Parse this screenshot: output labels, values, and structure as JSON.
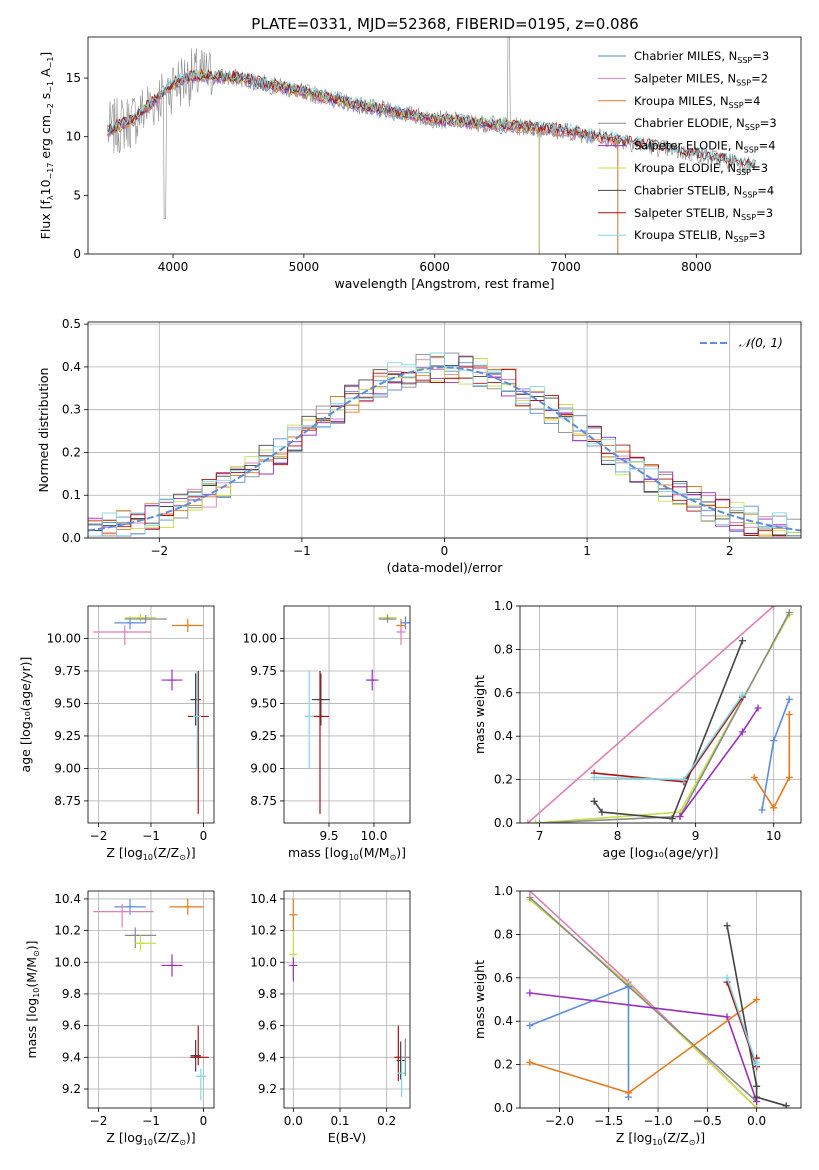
{
  "title": "PLATE=0331, MJD=52368, FIBERID=0195, z=0.086",
  "colors": {
    "Chabrier MILES": "#5b8de0",
    "Salpeter MILES": "#e07fb8",
    "Kroupa MILES": "#e87a1c",
    "Chabrier ELODIE": "#8b8b8b",
    "Salpeter ELODIE": "#9a2fbf",
    "Kroupa ELODIE": "#c8df46",
    "Chabrier STELIB": "#444444",
    "Salpeter STELIB": "#b01010",
    "Kroupa STELIB": "#80d8e6",
    "normal": "#5b8de0"
  },
  "chart_data": [
    {
      "id": "spectrum",
      "type": "line",
      "xlabel": "wavelength [Angstrom, rest frame]",
      "ylabel_parts": [
        "Flux [f",
        "λ",
        "10",
        "−17",
        " erg cm",
        "−2",
        " s",
        "−1",
        " A",
        "−1",
        "]"
      ],
      "xlim": [
        3350,
        8800
      ],
      "ylim": [
        0,
        18.5
      ],
      "xticks": [
        4000,
        5000,
        6000,
        7000,
        8000
      ],
      "yticks": [
        0,
        5,
        10,
        15
      ],
      "grid": false,
      "legend_position": "top-right",
      "legend": [
        {
          "name": "Chabrier MILES",
          "nssp": "3"
        },
        {
          "name": "Salpeter MILES",
          "nssp": "2"
        },
        {
          "name": "Kroupa MILES",
          "nssp": "4"
        },
        {
          "name": "Chabrier ELODIE",
          "nssp": "3"
        },
        {
          "name": "Salpeter ELODIE",
          "nssp": "4"
        },
        {
          "name": "Kroupa ELODIE",
          "nssp": "3"
        },
        {
          "name": "Chabrier STELIB",
          "nssp": "4"
        },
        {
          "name": "Salpeter STELIB",
          "nssp": "3"
        },
        {
          "name": "Kroupa STELIB",
          "nssp": "3"
        }
      ],
      "continuum": [
        [
          3500,
          10.5
        ],
        [
          3600,
          11.0
        ],
        [
          3700,
          11.5
        ],
        [
          3800,
          12.5
        ],
        [
          3900,
          13.5
        ],
        [
          4000,
          14.5
        ],
        [
          4100,
          15.0
        ],
        [
          4200,
          15.2
        ],
        [
          4500,
          15.0
        ],
        [
          5000,
          13.8
        ],
        [
          5500,
          12.5
        ],
        [
          6000,
          11.5
        ],
        [
          6500,
          11.0
        ],
        [
          7000,
          10.5
        ],
        [
          7500,
          9.5
        ],
        [
          8000,
          8.5
        ],
        [
          8450,
          7.5
        ]
      ]
    },
    {
      "id": "residuals",
      "type": "line",
      "xlabel": "(data-model)/error",
      "ylabel": "Normed distribution",
      "xlim": [
        -2.5,
        2.5
      ],
      "ylim": [
        0,
        0.505
      ],
      "xticks": [
        -2,
        -1,
        0,
        1,
        2
      ],
      "yticks": [
        0.0,
        0.1,
        0.2,
        0.3,
        0.4,
        0.5
      ],
      "grid": true,
      "legend_position": "top-right",
      "legend": [
        {
          "name": "𝒩(0, 1)"
        }
      ],
      "bin_width": 0.1,
      "x_start": -2.5
    },
    {
      "id": "age-vs-Z",
      "type": "scatter",
      "xlabel_parts": [
        "Z [log",
        "10",
        "(Z/Z",
        "⊙",
        ")]"
      ],
      "ylabel": "age  [log₁₀(age/yr)]",
      "xlim": [
        -2.2,
        0.2
      ],
      "ylim": [
        8.58,
        10.25
      ],
      "xticks": [
        -2,
        -1,
        0
      ],
      "yticks": [
        8.75,
        9.0,
        9.25,
        9.5,
        9.75,
        10.0
      ],
      "grid": true,
      "points": [
        {
          "series": "Chabrier MILES",
          "x": -1.4,
          "y": 10.12,
          "xerr": [
            0.3,
            0.3
          ],
          "yerr": [
            0.05,
            0.05
          ]
        },
        {
          "series": "Salpeter MILES",
          "x": -1.5,
          "y": 10.05,
          "xerr": [
            0.6,
            0.5
          ],
          "yerr": [
            0.1,
            0.05
          ]
        },
        {
          "series": "Kroupa MILES",
          "x": -0.3,
          "y": 10.1,
          "xerr": [
            0.3,
            0.3
          ],
          "yerr": [
            0.05,
            0.05
          ]
        },
        {
          "series": "Kroupa ELODIE",
          "x": -1.2,
          "y": 10.16,
          "xerr": [
            0.3,
            0.3
          ],
          "yerr": [
            0.03,
            0.03
          ]
        },
        {
          "series": "Chabrier ELODIE",
          "x": -1.1,
          "y": 10.15,
          "xerr": [
            0.4,
            0.4
          ],
          "yerr": [
            0.03,
            0.03
          ]
        },
        {
          "series": "Salpeter ELODIE",
          "x": -0.6,
          "y": 9.68,
          "xerr": [
            0.2,
            0.2
          ],
          "yerr": [
            0.08,
            0.08
          ]
        },
        {
          "series": "Chabrier STELIB",
          "x": -0.15,
          "y": 9.53,
          "xerr": [
            0.1,
            0.1
          ],
          "yerr": [
            0.2,
            0.2
          ]
        },
        {
          "series": "Salpeter STELIB",
          "x": -0.1,
          "y": 9.4,
          "xerr": [
            0.2,
            0.2
          ],
          "yerr": [
            0.75,
            0.35
          ]
        },
        {
          "series": "Kroupa STELIB",
          "x": -0.12,
          "y": 9.4,
          "xerr": [
            0.05,
            0.05
          ],
          "yerr": [
            0.4,
            0.35
          ]
        }
      ]
    },
    {
      "id": "age-vs-mass",
      "type": "scatter",
      "xlabel_parts": [
        "mass [log",
        "10",
        "(M/M",
        "⊙",
        ")]"
      ],
      "xlim": [
        9.0,
        10.4
      ],
      "ylim": [
        8.58,
        10.25
      ],
      "xticks": [
        9.5,
        10.0
      ],
      "yticks": [
        8.75,
        9.0,
        9.25,
        9.5,
        9.75,
        10.0
      ],
      "grid": true,
      "points": [
        {
          "series": "Kroupa ELODIE",
          "x": 10.15,
          "y": 10.16,
          "xerr": [
            0.1,
            0.1
          ],
          "yerr": [
            0.03,
            0.03
          ]
        },
        {
          "series": "Chabrier ELODIE",
          "x": 10.15,
          "y": 10.15,
          "xerr": [
            0.1,
            0.1
          ],
          "yerr": [
            0.03,
            0.03
          ]
        },
        {
          "series": "Kroupa MILES",
          "x": 10.3,
          "y": 10.1,
          "xerr": [
            0.05,
            0.05
          ],
          "yerr": [
            0.05,
            0.05
          ]
        },
        {
          "series": "Chabrier MILES",
          "x": 10.35,
          "y": 10.12,
          "xerr": [
            0.05,
            0.05
          ],
          "yerr": [
            0.05,
            0.05
          ]
        },
        {
          "series": "Salpeter MILES",
          "x": 10.3,
          "y": 10.05,
          "xerr": [
            0.05,
            0.05
          ],
          "yerr": [
            0.1,
            0.05
          ]
        },
        {
          "series": "Salpeter ELODIE",
          "x": 9.98,
          "y": 9.68,
          "xerr": [
            0.07,
            0.07
          ],
          "yerr": [
            0.08,
            0.08
          ]
        },
        {
          "series": "Chabrier STELIB",
          "x": 9.41,
          "y": 9.53,
          "xerr": [
            0.1,
            0.1
          ],
          "yerr": [
            0.2,
            0.2
          ]
        },
        {
          "series": "Salpeter STELIB",
          "x": 9.4,
          "y": 9.4,
          "xerr": [
            0.1,
            0.1
          ],
          "yerr": [
            0.75,
            0.35
          ]
        },
        {
          "series": "Kroupa STELIB",
          "x": 9.28,
          "y": 9.4,
          "xerr": [
            0.05,
            0.05
          ],
          "yerr": [
            0.4,
            0.35
          ]
        }
      ]
    },
    {
      "id": "weight-vs-age",
      "type": "line",
      "xlabel": "age  [log₁₀(age/yr)]",
      "ylabel": "mass weight",
      "xlim": [
        6.75,
        10.35
      ],
      "ylim": [
        0,
        1.0
      ],
      "xticks": [
        7,
        8,
        9,
        10
      ],
      "yticks": [
        0.0,
        0.2,
        0.4,
        0.6,
        0.8,
        1.0
      ],
      "grid": true,
      "series": [
        {
          "name": "Salpeter MILES",
          "points": [
            [
              6.85,
              0
            ],
            [
              10.0,
              1.0
            ]
          ]
        },
        {
          "name": "Kroupa ELODIE",
          "points": [
            [
              6.95,
              0
            ],
            [
              8.8,
              0.05
            ],
            [
              10.2,
              0.96
            ]
          ]
        },
        {
          "name": "Chabrier ELODIE",
          "points": [
            [
              7.0,
              0
            ],
            [
              8.8,
              0.03
            ],
            [
              10.2,
              0.97
            ]
          ]
        },
        {
          "name": "Chabrier STELIB",
          "points": [
            [
              7.7,
              0.1
            ],
            [
              7.8,
              0.05
            ],
            [
              8.7,
              0.02
            ],
            [
              9.6,
              0.84
            ]
          ]
        },
        {
          "name": "Salpeter STELIB",
          "points": [
            [
              7.7,
              0.23
            ],
            [
              8.85,
              0.19
            ],
            [
              9.6,
              0.58
            ]
          ]
        },
        {
          "name": "Kroupa STELIB",
          "points": [
            [
              7.7,
              0.21
            ],
            [
              8.85,
              0.2
            ],
            [
              9.6,
              0.59
            ]
          ]
        },
        {
          "name": "Salpeter ELODIE",
          "points": [
            [
              8.8,
              0.03
            ],
            [
              9.6,
              0.42
            ],
            [
              9.8,
              0.53
            ]
          ]
        },
        {
          "name": "Chabrier MILES",
          "points": [
            [
              9.85,
              0.06
            ],
            [
              10.0,
              0.38
            ],
            [
              10.2,
              0.57
            ]
          ]
        },
        {
          "name": "Kroupa MILES",
          "points": [
            [
              9.75,
              0.21
            ],
            [
              10.0,
              0.07
            ],
            [
              10.2,
              0.21
            ],
            [
              10.2,
              0.5
            ]
          ]
        }
      ]
    },
    {
      "id": "mass-vs-Z",
      "type": "scatter",
      "xlabel_parts": [
        "Z [log",
        "10",
        "(Z/Z",
        "⊙",
        ")]"
      ],
      "ylabel_parts": [
        "mass [log",
        "10",
        "(M/M",
        "⊙",
        ")]"
      ],
      "xlim": [
        -2.2,
        0.2
      ],
      "ylim": [
        9.08,
        10.45
      ],
      "xticks": [
        -2,
        -1,
        0
      ],
      "yticks": [
        9.2,
        9.4,
        9.6,
        9.8,
        10.0,
        10.2,
        10.4
      ],
      "grid": true,
      "points": [
        {
          "series": "Chabrier MILES",
          "x": -1.4,
          "y": 10.35,
          "xerr": [
            0.3,
            0.3
          ],
          "yerr": [
            0.05,
            0.05
          ]
        },
        {
          "series": "Salpeter MILES",
          "x": -1.55,
          "y": 10.32,
          "xerr": [
            0.55,
            0.6
          ],
          "yerr": [
            0.1,
            0.05
          ]
        },
        {
          "series": "Kroupa MILES",
          "x": -0.3,
          "y": 10.35,
          "xerr": [
            0.35,
            0.3
          ],
          "yerr": [
            0.05,
            0.05
          ]
        },
        {
          "series": "Chabrier ELODIE",
          "x": -1.3,
          "y": 10.17,
          "xerr": [
            0.2,
            0.4
          ],
          "yerr": [
            0.08,
            0.05
          ]
        },
        {
          "series": "Kroupa ELODIE",
          "x": -1.2,
          "y": 10.12,
          "xerr": [
            0.1,
            0.3
          ],
          "yerr": [
            0.05,
            0.05
          ]
        },
        {
          "series": "Salpeter ELODIE",
          "x": -0.6,
          "y": 9.98,
          "xerr": [
            0.2,
            0.2
          ],
          "yerr": [
            0.07,
            0.07
          ]
        },
        {
          "series": "Chabrier STELIB",
          "x": -0.15,
          "y": 9.41,
          "xerr": [
            0.1,
            0.1
          ],
          "yerr": [
            0.1,
            0.1
          ]
        },
        {
          "series": "Salpeter STELIB",
          "x": -0.1,
          "y": 9.4,
          "xerr": [
            0.15,
            0.2
          ],
          "yerr": [
            0.05,
            0.2
          ]
        },
        {
          "series": "Kroupa STELIB",
          "x": -0.05,
          "y": 9.28,
          "xerr": [
            0.1,
            0.1
          ],
          "yerr": [
            0.15,
            0.05
          ]
        }
      ]
    },
    {
      "id": "mass-vs-EBV",
      "type": "scatter",
      "xlabel": "E(B-V)",
      "xlim": [
        -0.02,
        0.25
      ],
      "ylim": [
        9.08,
        10.45
      ],
      "xticks": [
        0.0,
        0.1,
        0.2
      ],
      "yticks": [
        9.2,
        9.4,
        9.6,
        9.8,
        10.0,
        10.2,
        10.4
      ],
      "grid": true,
      "points": [
        {
          "series": "Kroupa MILES",
          "x": 0.0,
          "y": 10.3,
          "yerr": [
            0.1,
            0.1
          ]
        },
        {
          "series": "Kroupa ELODIE",
          "x": 0.0,
          "y": 10.05,
          "yerr": [
            0.15,
            0.15
          ]
        },
        {
          "series": "Salpeter ELODIE",
          "x": 0.0,
          "y": 9.98,
          "yerr": [
            0.1,
            0.05
          ]
        },
        {
          "series": "Salpeter STELIB",
          "x": 0.225,
          "y": 9.4,
          "yerr": [
            0.15,
            0.2
          ]
        },
        {
          "series": "Chabrier STELIB",
          "x": 0.23,
          "y": 9.38,
          "yerr": [
            0.12,
            0.12
          ]
        },
        {
          "series": "Kroupa STELIB",
          "x": 0.232,
          "y": 9.3,
          "yerr": [
            0.15,
            0.1
          ]
        },
        {
          "series": "Chabrier ELODIE",
          "x": 0.24,
          "y": 9.4,
          "yerr": [
            0.12,
            0.12
          ]
        }
      ]
    },
    {
      "id": "weight-vs-Z",
      "type": "line",
      "xlabel_parts": [
        "Z [log",
        "10",
        "(Z/Z",
        "⊙",
        ")]"
      ],
      "ylabel": "mass weight",
      "xlim": [
        -2.4,
        0.45
      ],
      "ylim": [
        0,
        1.0
      ],
      "xticks": [
        -2.0,
        -1.5,
        -1.0,
        -0.5,
        0.0
      ],
      "yticks": [
        0.0,
        0.2,
        0.4,
        0.6,
        0.8,
        1.0
      ],
      "grid": true,
      "series": [
        {
          "name": "Salpeter MILES",
          "points": [
            [
              -2.3,
              1.0
            ],
            [
              -1.3,
              0.58
            ],
            [
              0.0,
              0.0
            ]
          ]
        },
        {
          "name": "Kroupa ELODIE",
          "points": [
            [
              -2.3,
              0.96
            ],
            [
              -1.3,
              0.57
            ],
            [
              0.0,
              0.0
            ]
          ]
        },
        {
          "name": "Chabrier ELODIE",
          "points": [
            [
              -2.3,
              0.97
            ],
            [
              -1.3,
              0.56
            ],
            [
              0.0,
              0.03
            ]
          ]
        },
        {
          "name": "Chabrier MILES",
          "points": [
            [
              -2.3,
              0.38
            ],
            [
              -1.3,
              0.56
            ],
            [
              -1.3,
              0.05
            ]
          ]
        },
        {
          "name": "Salpeter ELODIE",
          "points": [
            [
              -2.3,
              0.53
            ],
            [
              -0.3,
              0.42
            ],
            [
              0.0,
              0.03
            ]
          ]
        },
        {
          "name": "Kroupa MILES",
          "points": [
            [
              -2.3,
              0.21
            ],
            [
              -1.3,
              0.07
            ],
            [
              0.0,
              0.5
            ]
          ]
        },
        {
          "name": "Chabrier STELIB",
          "points": [
            [
              -0.3,
              0.84
            ],
            [
              0.0,
              0.1
            ],
            [
              0.0,
              0.05
            ],
            [
              0.3,
              0.01
            ]
          ]
        },
        {
          "name": "Salpeter STELIB",
          "points": [
            [
              -0.3,
              0.58
            ],
            [
              0.0,
              0.19
            ],
            [
              0.0,
              0.23
            ]
          ]
        },
        {
          "name": "Kroupa STELIB",
          "points": [
            [
              -0.3,
              0.6
            ],
            [
              0.0,
              0.2
            ],
            [
              0.0,
              0.21
            ]
          ]
        }
      ]
    }
  ]
}
